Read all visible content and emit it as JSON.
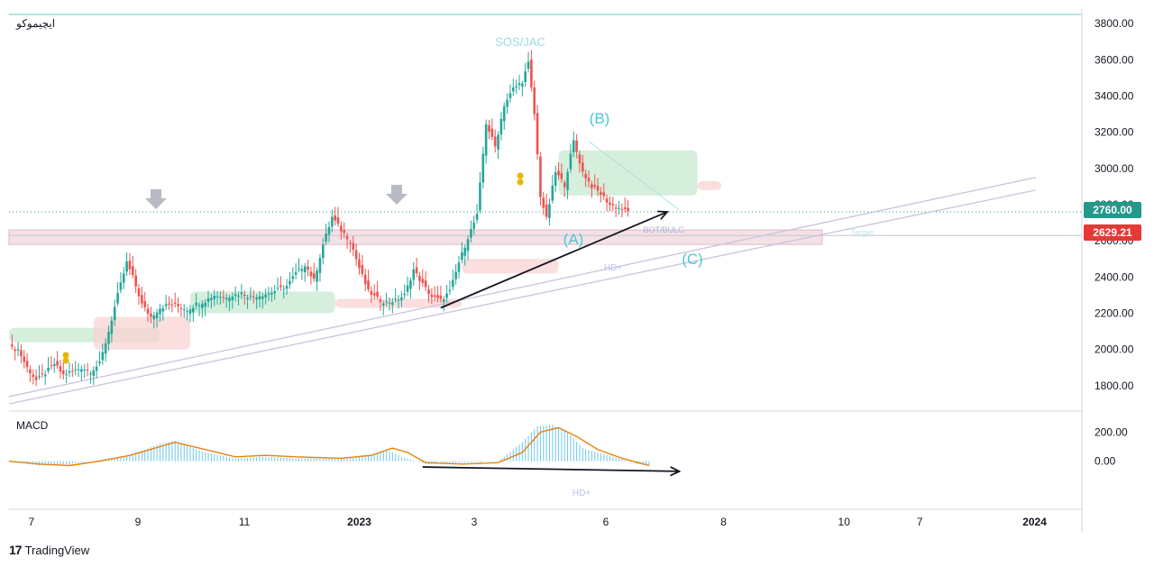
{
  "symbol_name": "ایچیموکو",
  "watermark": "SOS/JAC",
  "price_labels": {
    "current": "2760.00",
    "support": "2629.21"
  },
  "colors": {
    "up": "#26a69a",
    "down": "#ef5350",
    "accent_teal": "#4ec5d6",
    "macd_line": "#e8820c",
    "macd_hist": "#6ec6e8",
    "trendline": "#c9c4dc",
    "current_bg": "#22998a",
    "support_bg": "#e53935"
  },
  "annotations": {
    "wave_a": "(A)",
    "wave_b": "(B)",
    "wave_c": "(C)",
    "label_hd_price": "HD+",
    "label_hd_macd": "HD+",
    "label_break": "BOT/BULC",
    "label_target": "Target"
  },
  "macd_label": "MACD",
  "brand": {
    "mark": "17",
    "name": "TradingView"
  },
  "chart_data": [
    {
      "type": "candlestick",
      "title": "",
      "y_ticks": [
        "3800.00",
        "3600.00",
        "3400.00",
        "3200.00",
        "3000.00",
        "2800.00",
        "2600.00",
        "2400.00",
        "2200.00",
        "2000.00",
        "1800.00"
      ],
      "ylim": [
        1680,
        3880
      ],
      "x_ticks": [
        "7",
        "9",
        "11",
        "2023",
        "3",
        "6",
        "8",
        "10",
        "7",
        "2024"
      ],
      "horizontal_levels": [
        2760,
        2629.21
      ],
      "resistance_zone": [
        2580,
        2660
      ],
      "price_path": [
        [
          0,
          2010
        ],
        [
          3,
          2000
        ],
        [
          6,
          1900
        ],
        [
          9,
          1830
        ],
        [
          12,
          1870
        ],
        [
          15,
          1920
        ],
        [
          18,
          1860
        ],
        [
          21,
          1880
        ],
        [
          24,
          1900
        ],
        [
          27,
          1880
        ],
        [
          30,
          1920
        ],
        [
          33,
          2100
        ],
        [
          36,
          2300
        ],
        [
          39,
          2480
        ],
        [
          41,
          2400
        ],
        [
          44,
          2250
        ],
        [
          47,
          2180
        ],
        [
          50,
          2230
        ],
        [
          53,
          2250
        ],
        [
          56,
          2240
        ],
        [
          59,
          2220
        ],
        [
          62,
          2250
        ],
        [
          65,
          2270
        ],
        [
          68,
          2300
        ],
        [
          71,
          2290
        ],
        [
          74,
          2300
        ],
        [
          77,
          2310
        ],
        [
          80,
          2290
        ],
        [
          83,
          2300
        ],
        [
          86,
          2310
        ],
        [
          89,
          2330
        ],
        [
          92,
          2350
        ],
        [
          95,
          2420
        ],
        [
          98,
          2470
        ],
        [
          101,
          2380
        ],
        [
          104,
          2580
        ],
        [
          107,
          2730
        ],
        [
          110,
          2660
        ],
        [
          113,
          2600
        ],
        [
          116,
          2450
        ],
        [
          119,
          2320
        ],
        [
          122,
          2280
        ],
        [
          125,
          2260
        ],
        [
          128,
          2270
        ],
        [
          131,
          2300
        ],
        [
          134,
          2440
        ],
        [
          137,
          2360
        ],
        [
          140,
          2290
        ],
        [
          143,
          2270
        ],
        [
          146,
          2320
        ],
        [
          149,
          2480
        ],
        [
          152,
          2620
        ],
        [
          155,
          2740
        ],
        [
          158,
          3250
        ],
        [
          161,
          3120
        ],
        [
          164,
          3350
        ],
        [
          167,
          3440
        ],
        [
          170,
          3480
        ],
        [
          172,
          3580
        ],
        [
          174,
          3300
        ],
        [
          176,
          2850
        ],
        [
          178,
          2720
        ],
        [
          181,
          2980
        ],
        [
          184,
          2910
        ],
        [
          187,
          3150
        ],
        [
          190,
          2980
        ],
        [
          193,
          2900
        ],
        [
          196,
          2860
        ],
        [
          199,
          2800
        ],
        [
          202,
          2780
        ],
        [
          205,
          2760
        ]
      ],
      "cloud_segments": [
        {
          "x0": 0,
          "x1": 50,
          "top": 2120,
          "bottom": 2040,
          "kind": "up"
        },
        {
          "x0": 28,
          "x1": 60,
          "top": 2180,
          "bottom": 2000,
          "kind": "down"
        },
        {
          "x0": 60,
          "x1": 108,
          "top": 2320,
          "bottom": 2200,
          "kind": "up"
        },
        {
          "x0": 108,
          "x1": 150,
          "top": 2280,
          "bottom": 2230,
          "kind": "down"
        },
        {
          "x0": 150,
          "x1": 182,
          "top": 2500,
          "bottom": 2420,
          "kind": "down"
        },
        {
          "x0": 182,
          "x1": 228,
          "top": 3100,
          "bottom": 2850,
          "kind": "up"
        },
        {
          "x0": 228,
          "x1": 236,
          "top": 2930,
          "bottom": 2880,
          "kind": "down"
        }
      ],
      "trendlines": [
        {
          "p1": [
            0,
            1740
          ],
          "p2": [
            340,
            2950
          ]
        },
        {
          "p1": [
            0,
            1700
          ],
          "p2": [
            340,
            2880
          ]
        }
      ],
      "arrows": [
        {
          "from": [
            143,
            2230
          ],
          "to": [
            218,
            2760
          ]
        }
      ],
      "wave_b_line": {
        "from": [
          192,
          3150
        ],
        "to": [
          222,
          2770
        ]
      },
      "macd": {
        "ylim": [
          -300,
          320
        ],
        "ticks": [
          "200.00",
          "0.00"
        ],
        "tick_values": [
          200,
          0
        ],
        "hist_path": [
          [
            0,
            0
          ],
          [
            10,
            -30
          ],
          [
            20,
            -20
          ],
          [
            30,
            10
          ],
          [
            40,
            40
          ],
          [
            50,
            120
          ],
          [
            55,
            140
          ],
          [
            65,
            60
          ],
          [
            75,
            20
          ],
          [
            85,
            30
          ],
          [
            95,
            20
          ],
          [
            110,
            20
          ],
          [
            120,
            40
          ],
          [
            125,
            80
          ],
          [
            130,
            30
          ],
          [
            138,
            -20
          ],
          [
            150,
            -10
          ],
          [
            162,
            0
          ],
          [
            170,
            130
          ],
          [
            175,
            240
          ],
          [
            180,
            250
          ],
          [
            185,
            200
          ],
          [
            190,
            90
          ],
          [
            200,
            30
          ],
          [
            208,
            -20
          ],
          [
            212,
            -30
          ]
        ],
        "line_path": [
          [
            0,
            0
          ],
          [
            10,
            -20
          ],
          [
            20,
            -30
          ],
          [
            30,
            0
          ],
          [
            40,
            40
          ],
          [
            50,
            100
          ],
          [
            55,
            130
          ],
          [
            65,
            80
          ],
          [
            75,
            30
          ],
          [
            85,
            40
          ],
          [
            95,
            30
          ],
          [
            110,
            20
          ],
          [
            120,
            40
          ],
          [
            127,
            90
          ],
          [
            132,
            60
          ],
          [
            138,
            -10
          ],
          [
            150,
            -20
          ],
          [
            162,
            -10
          ],
          [
            170,
            60
          ],
          [
            176,
            200
          ],
          [
            182,
            230
          ],
          [
            188,
            170
          ],
          [
            195,
            80
          ],
          [
            203,
            20
          ],
          [
            212,
            -30
          ]
        ],
        "divergence_arrow": {
          "from": [
            137,
            -40
          ],
          "to": [
            222,
            -70
          ]
        }
      }
    }
  ]
}
